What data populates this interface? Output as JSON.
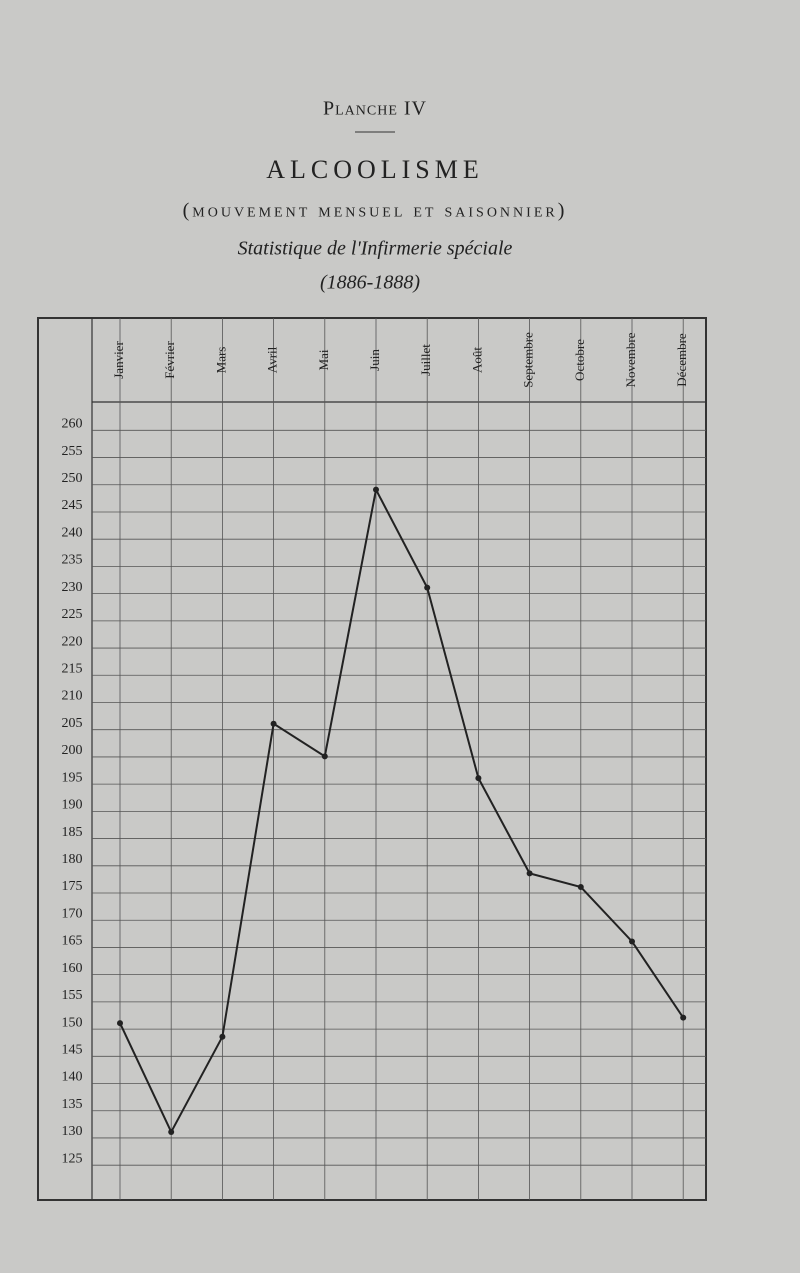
{
  "chart_data": {
    "type": "line",
    "supertitle": "Planche IV",
    "title": "ALCOOLISME",
    "subtitle": "(mouvement mensuel et saisonnier)",
    "caption": "Statistique de l'Infirmerie spéciale",
    "period": "(1886-1888)",
    "categories": [
      "Janvier",
      "Février",
      "Mars",
      "Avril",
      "Mai",
      "Juin",
      "Juillet",
      "Août",
      "Septembre",
      "Octobre",
      "Novembre",
      "Décembre"
    ],
    "values": [
      150,
      130,
      147.5,
      205,
      199,
      248,
      230,
      195,
      177.5,
      175,
      165,
      151
    ],
    "color": "#222222",
    "ylim": [
      117.5,
      263
    ],
    "yticks": [
      125,
      130,
      135,
      140,
      145,
      150,
      155,
      160,
      165,
      170,
      175,
      180,
      185,
      190,
      195,
      200,
      205,
      210,
      215,
      220,
      225,
      230,
      235,
      240,
      245,
      250,
      255,
      260
    ],
    "grid": true
  }
}
